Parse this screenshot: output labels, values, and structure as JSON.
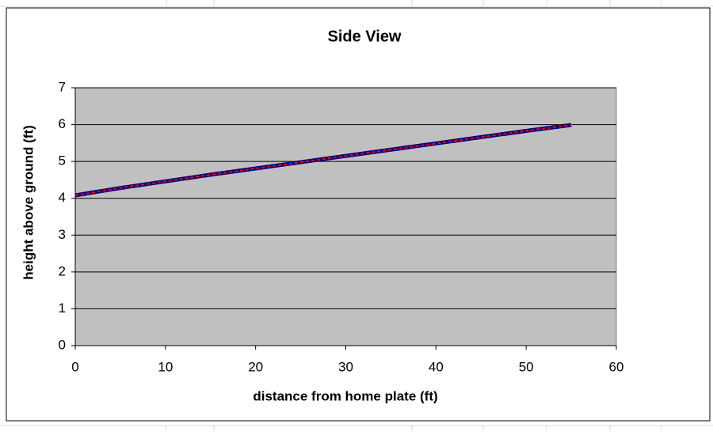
{
  "chart_data": {
    "type": "line",
    "title": "Side View",
    "x_label": "distance from home plate (ft)",
    "y_label": "height above ground (ft)",
    "x": [
      0,
      5,
      10,
      15,
      20,
      25,
      30,
      35,
      40,
      45,
      50,
      55
    ],
    "series": [
      {
        "color": "#000080",
        "values": [
          4.08,
          4.28,
          4.46,
          4.64,
          4.81,
          4.98,
          5.15,
          5.32,
          5.49,
          5.66,
          5.83,
          5.99
        ]
      },
      {
        "color": "#ff0000",
        "values": [
          4.08,
          4.28,
          4.46,
          4.64,
          4.81,
          4.98,
          5.15,
          5.32,
          5.49,
          5.66,
          5.83,
          5.99
        ]
      }
    ],
    "xlim": [
      0,
      60
    ],
    "xticks": [
      0,
      10,
      20,
      30,
      40,
      50,
      60
    ],
    "ylim": [
      0,
      7
    ],
    "yticks": [
      0,
      1,
      2,
      3,
      4,
      5,
      6,
      7
    ],
    "grid": true,
    "plot_background": "#c0c0c0"
  }
}
